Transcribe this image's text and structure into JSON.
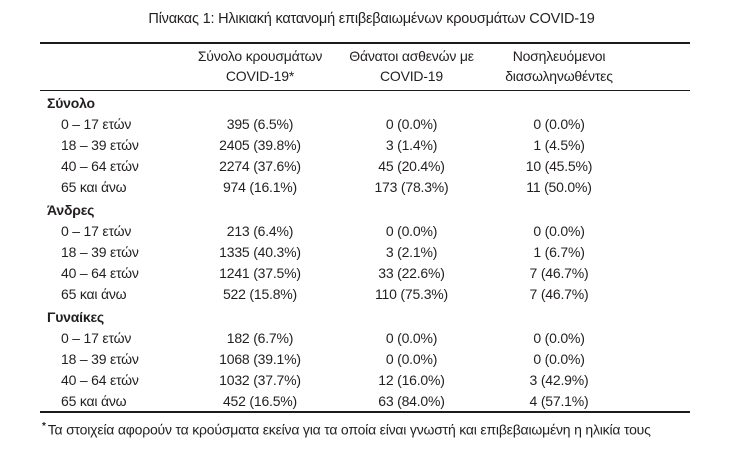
{
  "title": "Πίνακας 1: Ηλικιακή κατανομή επιβεβαιωμένων κρουσμάτων COVID-19",
  "table": {
    "columns": [
      {
        "line1": "Σύνολο κρουσμάτων",
        "line2": "COVID-19*"
      },
      {
        "line1": "Θάνατοι ασθενών με",
        "line2": "COVID-19"
      },
      {
        "line1": "Νοσηλευόμενοι",
        "line2": "διασωληνωθέντες"
      }
    ],
    "sections": [
      {
        "label": "Σύνολο",
        "rows": [
          {
            "age": "0 – 17 ετών",
            "cases": "395 (6.5%)",
            "deaths": "0 (0.0%)",
            "intubated": "0 (0.0%)"
          },
          {
            "age": "18 – 39 ετών",
            "cases": "2405 (39.8%)",
            "deaths": "3 (1.4%)",
            "intubated": "1 (4.5%)"
          },
          {
            "age": "40 – 64 ετών",
            "cases": "2274 (37.6%)",
            "deaths": "45 (20.4%)",
            "intubated": "10 (45.5%)"
          },
          {
            "age": "65 και άνω",
            "cases": "974 (16.1%)",
            "deaths": "173 (78.3%)",
            "intubated": "11 (50.0%)"
          }
        ]
      },
      {
        "label": "Άνδρες",
        "rows": [
          {
            "age": "0 – 17 ετών",
            "cases": "213 (6.4%)",
            "deaths": "0 (0.0%)",
            "intubated": "0 (0.0%)"
          },
          {
            "age": "18 – 39 ετών",
            "cases": "1335 (40.3%)",
            "deaths": "3 (2.1%)",
            "intubated": "1 (6.7%)"
          },
          {
            "age": "40 – 64 ετών",
            "cases": "1241 (37.5%)",
            "deaths": "33 (22.6%)",
            "intubated": "7 (46.7%)"
          },
          {
            "age": "65 και άνω",
            "cases": "522 (15.8%)",
            "deaths": "110 (75.3%)",
            "intubated": "7 (46.7%)"
          }
        ]
      },
      {
        "label": "Γυναίκες",
        "rows": [
          {
            "age": "0 – 17 ετών",
            "cases": "182 (6.7%)",
            "deaths": "0 (0.0%)",
            "intubated": "0 (0.0%)"
          },
          {
            "age": "18 – 39 ετών",
            "cases": "1068 (39.1%)",
            "deaths": "0 (0.0%)",
            "intubated": "0 (0.0%)"
          },
          {
            "age": "40 – 64 ετών",
            "cases": "1032 (37.7%)",
            "deaths": "12 (16.0%)",
            "intubated": "3 (42.9%)"
          },
          {
            "age": "65 και άνω",
            "cases": "452 (16.5%)",
            "deaths": "63 (84.0%)",
            "intubated": "4 (57.1%)"
          }
        ]
      }
    ]
  },
  "footnote": {
    "marker": "*",
    "text": "Τα στοιχεία αφορούν τα κρούσματα εκείνα για τα οποία είναι γνωστή και επιβεβαιωμένη η ηλικία τους"
  },
  "colors": {
    "text": "#231f20",
    "line": "#1c1c1c",
    "background": "#ffffff"
  }
}
